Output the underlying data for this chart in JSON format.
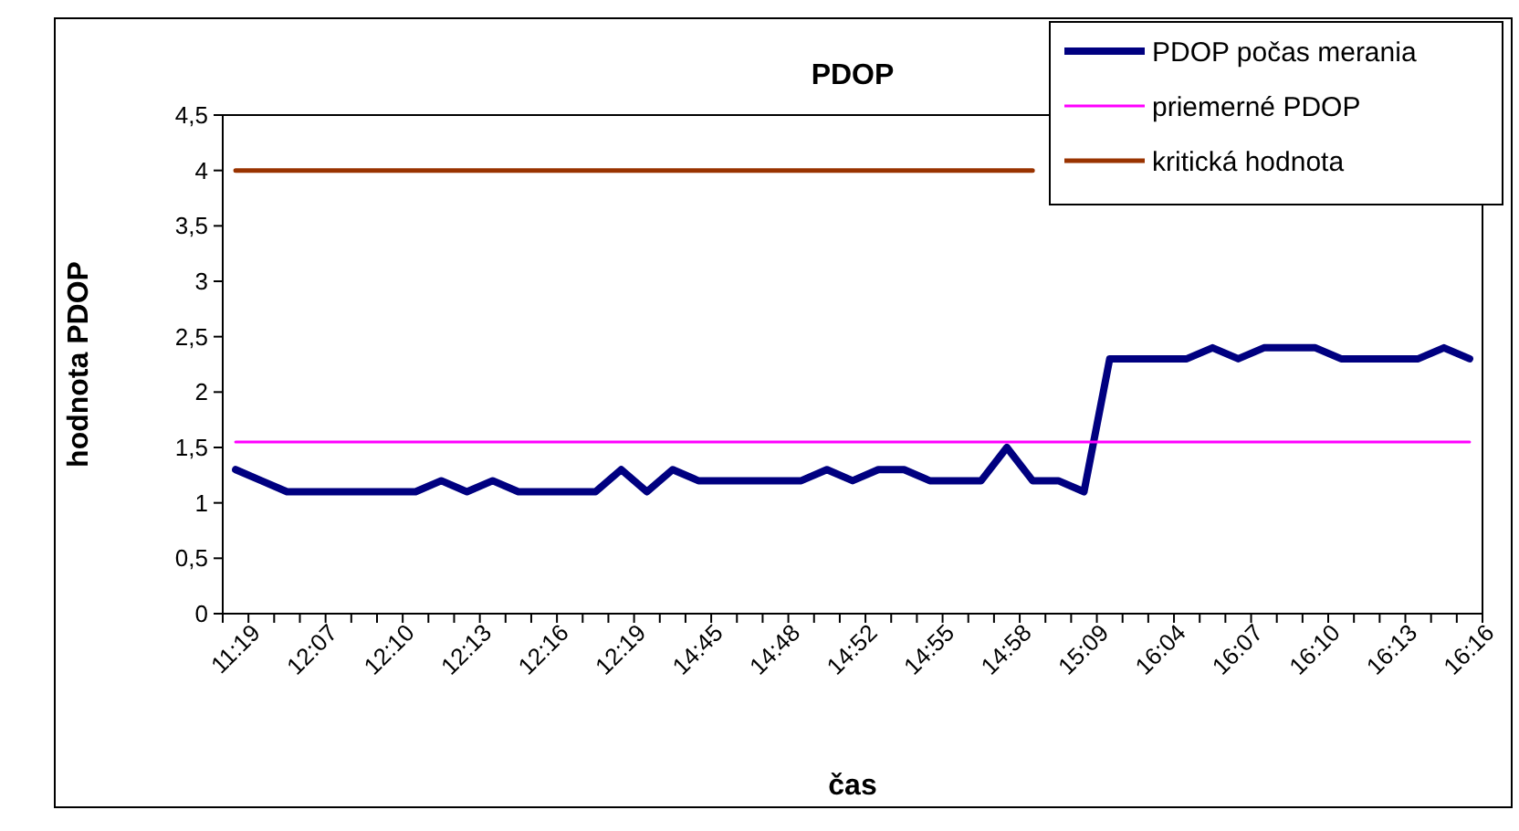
{
  "chart_data": {
    "type": "line",
    "title": "PDOP",
    "xlabel": "čas",
    "ylabel": "hodnota PDOP",
    "categories": [
      "11:19",
      null,
      null,
      "12:07",
      null,
      null,
      "12:10",
      null,
      null,
      "12:13",
      null,
      null,
      "12:16",
      null,
      null,
      "12:19",
      null,
      null,
      "14:45",
      null,
      null,
      "14:48",
      null,
      null,
      "14:52",
      null,
      null,
      "14:55",
      null,
      null,
      "14:58",
      null,
      null,
      "15:09",
      null,
      null,
      "16:04",
      null,
      null,
      "16:07",
      null,
      null,
      "16:10",
      null,
      null,
      "16:13",
      null,
      null,
      "16:16"
    ],
    "series": [
      {
        "name": "PDOP počas merania",
        "color": "#000080",
        "values": [
          1.3,
          1.2,
          1.1,
          1.1,
          1.1,
          1.1,
          1.1,
          1.1,
          1.2,
          1.1,
          1.2,
          1.1,
          1.1,
          1.1,
          1.1,
          1.3,
          1.1,
          1.3,
          1.2,
          1.2,
          1.2,
          1.2,
          1.2,
          1.3,
          1.2,
          1.3,
          1.3,
          1.2,
          1.2,
          1.2,
          1.5,
          1.2,
          1.2,
          1.1,
          2.3,
          2.3,
          2.3,
          2.3,
          2.4,
          2.3,
          2.4,
          2.4,
          2.4,
          2.3,
          2.3,
          2.3,
          2.3,
          2.4,
          2.3
        ]
      },
      {
        "name": "priemerné PDOP",
        "color": "#ff00ff",
        "values": [
          1.55,
          1.55,
          1.55,
          1.55,
          1.55,
          1.55,
          1.55,
          1.55,
          1.55,
          1.55,
          1.55,
          1.55,
          1.55,
          1.55,
          1.55,
          1.55,
          1.55,
          1.55,
          1.55,
          1.55,
          1.55,
          1.55,
          1.55,
          1.55,
          1.55,
          1.55,
          1.55,
          1.55,
          1.55,
          1.55,
          1.55,
          1.55,
          1.55,
          1.55,
          1.55,
          1.55,
          1.55,
          1.55,
          1.55,
          1.55,
          1.55,
          1.55,
          1.55,
          1.55,
          1.55,
          1.55,
          1.55,
          1.55,
          1.55
        ]
      },
      {
        "name": "kritická hodnota",
        "color": "#993300",
        "values": [
          4,
          4,
          4,
          4,
          4,
          4,
          4,
          4,
          4,
          4,
          4,
          4,
          4,
          4,
          4,
          4,
          4,
          4,
          4,
          4,
          4,
          4,
          4,
          4,
          4,
          4,
          4,
          4,
          4,
          4,
          4,
          4,
          null,
          null,
          null,
          null,
          null,
          null,
          null,
          null,
          null,
          null,
          null,
          null,
          null,
          null,
          null,
          null,
          null
        ]
      }
    ],
    "ylim": [
      0,
      4.5
    ],
    "yticks": [
      0,
      {
        "value": 0.5,
        "label": "0,5"
      },
      1,
      {
        "value": 1.5,
        "label": "1,5"
      },
      2,
      {
        "value": 2.5,
        "label": "2,5"
      },
      3,
      {
        "value": 3.5,
        "label": "3,5"
      },
      4,
      {
        "value": 4.5,
        "label": "4,5"
      }
    ],
    "grid": false,
    "legend": "top right",
    "marker": "none",
    "line_style": "solid"
  }
}
